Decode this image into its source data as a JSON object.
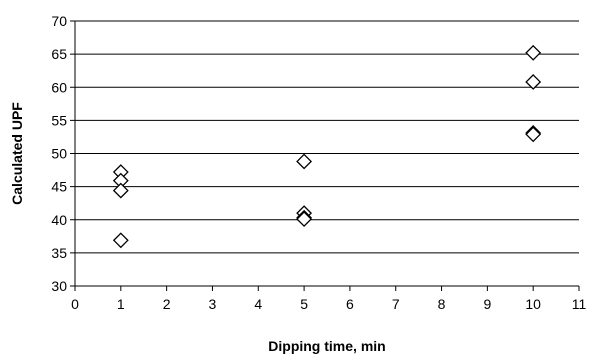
{
  "chart_data": {
    "type": "scatter",
    "xlabel": "Dipping time, min",
    "ylabel": "Calculated UPF",
    "xlim": [
      0,
      11
    ],
    "ylim": [
      30,
      70
    ],
    "x_ticks": [
      "0",
      "1",
      "2",
      "3",
      "4",
      "5",
      "6",
      "7",
      "8",
      "9",
      "10",
      "11"
    ],
    "y_ticks": [
      "30",
      "35",
      "40",
      "45",
      "50",
      "55",
      "60",
      "65",
      "70"
    ],
    "grid": "horizontal",
    "legend": "none",
    "marker": "open-diamond",
    "series": [
      {
        "points": [
          {
            "x": 1,
            "y": 47.2
          },
          {
            "x": 1,
            "y": 45.9
          },
          {
            "x": 1,
            "y": 44.4
          },
          {
            "x": 1,
            "y": 36.9
          },
          {
            "x": 5,
            "y": 48.8
          },
          {
            "x": 5,
            "y": 41.0
          },
          {
            "x": 5,
            "y": 40.3
          },
          {
            "x": 5,
            "y": 40.1
          },
          {
            "x": 10,
            "y": 65.2
          },
          {
            "x": 10,
            "y": 60.8
          },
          {
            "x": 10,
            "y": 53.1
          },
          {
            "x": 10,
            "y": 52.9
          }
        ]
      }
    ]
  }
}
